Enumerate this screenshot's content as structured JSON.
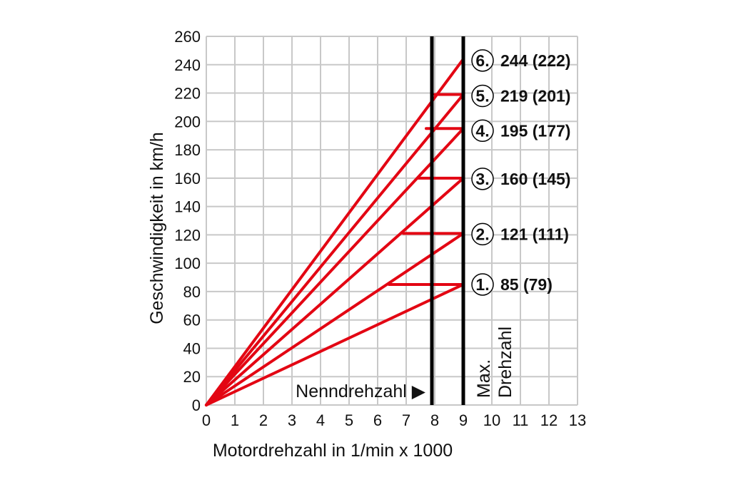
{
  "chart_data": {
    "type": "line",
    "xlabel": "Motordrehzahl in 1/min x 1000",
    "ylabel": "Geschwindigkeit in km/h",
    "xlim": [
      0,
      13
    ],
    "ylim": [
      0,
      260
    ],
    "x_ticks": [
      0,
      1,
      2,
      3,
      4,
      5,
      6,
      7,
      8,
      9,
      10,
      11,
      12,
      13
    ],
    "y_ticks": [
      0,
      20,
      40,
      60,
      80,
      100,
      120,
      140,
      160,
      180,
      200,
      220,
      240,
      260
    ],
    "grid": true,
    "nenndrehzahl_x": 7.9,
    "max_drehzahl_x": 9,
    "gear_lines": [
      {
        "gear": "1.",
        "x": [
          0,
          9
        ],
        "y": [
          0,
          85
        ],
        "label": "85 (79)"
      },
      {
        "gear": "2.",
        "x": [
          0,
          9
        ],
        "y": [
          0,
          121
        ],
        "label": "121 (111)"
      },
      {
        "gear": "3.",
        "x": [
          0,
          9
        ],
        "y": [
          0,
          160
        ],
        "label": "160 (145)"
      },
      {
        "gear": "4.",
        "x": [
          0,
          9
        ],
        "y": [
          0,
          195
        ],
        "label": "195 (177)"
      },
      {
        "gear": "5.",
        "x": [
          0,
          9
        ],
        "y": [
          0,
          219
        ],
        "label": "219 (201)"
      },
      {
        "gear": "6.",
        "x": [
          0,
          9
        ],
        "y": [
          0,
          244
        ],
        "label": "244 (222)"
      }
    ],
    "shift_lines": [
      {
        "y": 85,
        "x_from": 6.4,
        "x_to": 9
      },
      {
        "y": 121,
        "x_from": 6.9,
        "x_to": 9
      },
      {
        "y": 160,
        "x_from": 7.4,
        "x_to": 9
      },
      {
        "y": 195,
        "x_from": 7.7,
        "x_to": 9
      },
      {
        "y": 219,
        "x_from": 8.0,
        "x_to": 9
      }
    ]
  },
  "annotations": {
    "nenndrehzahl": "Nenndrehzahl ▶",
    "max_line1": "Max.",
    "max_line2": "Drehzahl"
  },
  "colors": {
    "line": "#e30613",
    "grid": "#c8c8c8",
    "marker": "#000000"
  }
}
